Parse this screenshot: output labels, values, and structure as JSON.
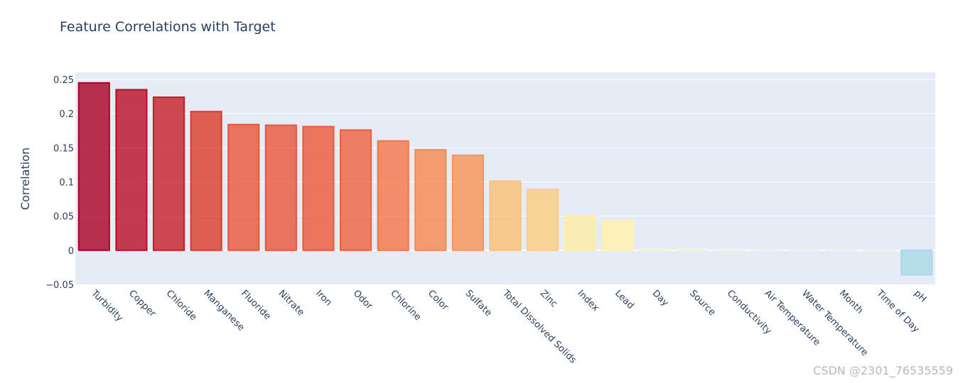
{
  "chart_data": {
    "type": "bar",
    "title": "Feature Correlations with Target",
    "xlabel": "",
    "ylabel": "Correlation",
    "ylim": [
      -0.05,
      0.26
    ],
    "yticks": [
      {
        "value": -0.05,
        "label": "−0.05"
      },
      {
        "value": 0,
        "label": "0"
      },
      {
        "value": 0.05,
        "label": "0.05"
      },
      {
        "value": 0.1,
        "label": "0.1"
      },
      {
        "value": 0.15,
        "label": "0.15"
      },
      {
        "value": 0.2,
        "label": "0.2"
      },
      {
        "value": 0.25,
        "label": "0.25"
      }
    ],
    "grid": true,
    "categories": [
      "Turbidity",
      "Copper",
      "Chloride",
      "Manganese",
      "Fluoride",
      "Nitrate",
      "Iron",
      "Odor",
      "Chlorine",
      "Color",
      "Sulfate",
      "Total Dissolved Solids",
      "Zinc",
      "Index",
      "Lead",
      "Day",
      "Source",
      "Conductivity",
      "Air Temperature",
      "Water Temperature",
      "Month",
      "Time of Day",
      "pH"
    ],
    "values": [
      0.245,
      0.235,
      0.224,
      0.203,
      0.184,
      0.183,
      0.181,
      0.176,
      0.16,
      0.147,
      0.139,
      0.101,
      0.089,
      0.05,
      0.043,
      0.002,
      0.002,
      0.0015,
      0.001,
      0.001,
      0.001,
      0.0005,
      -0.036
    ],
    "colorscale": "RdYlBu-like (dark red high to light blue low)"
  },
  "watermark": "CSDN @2301_76535559"
}
